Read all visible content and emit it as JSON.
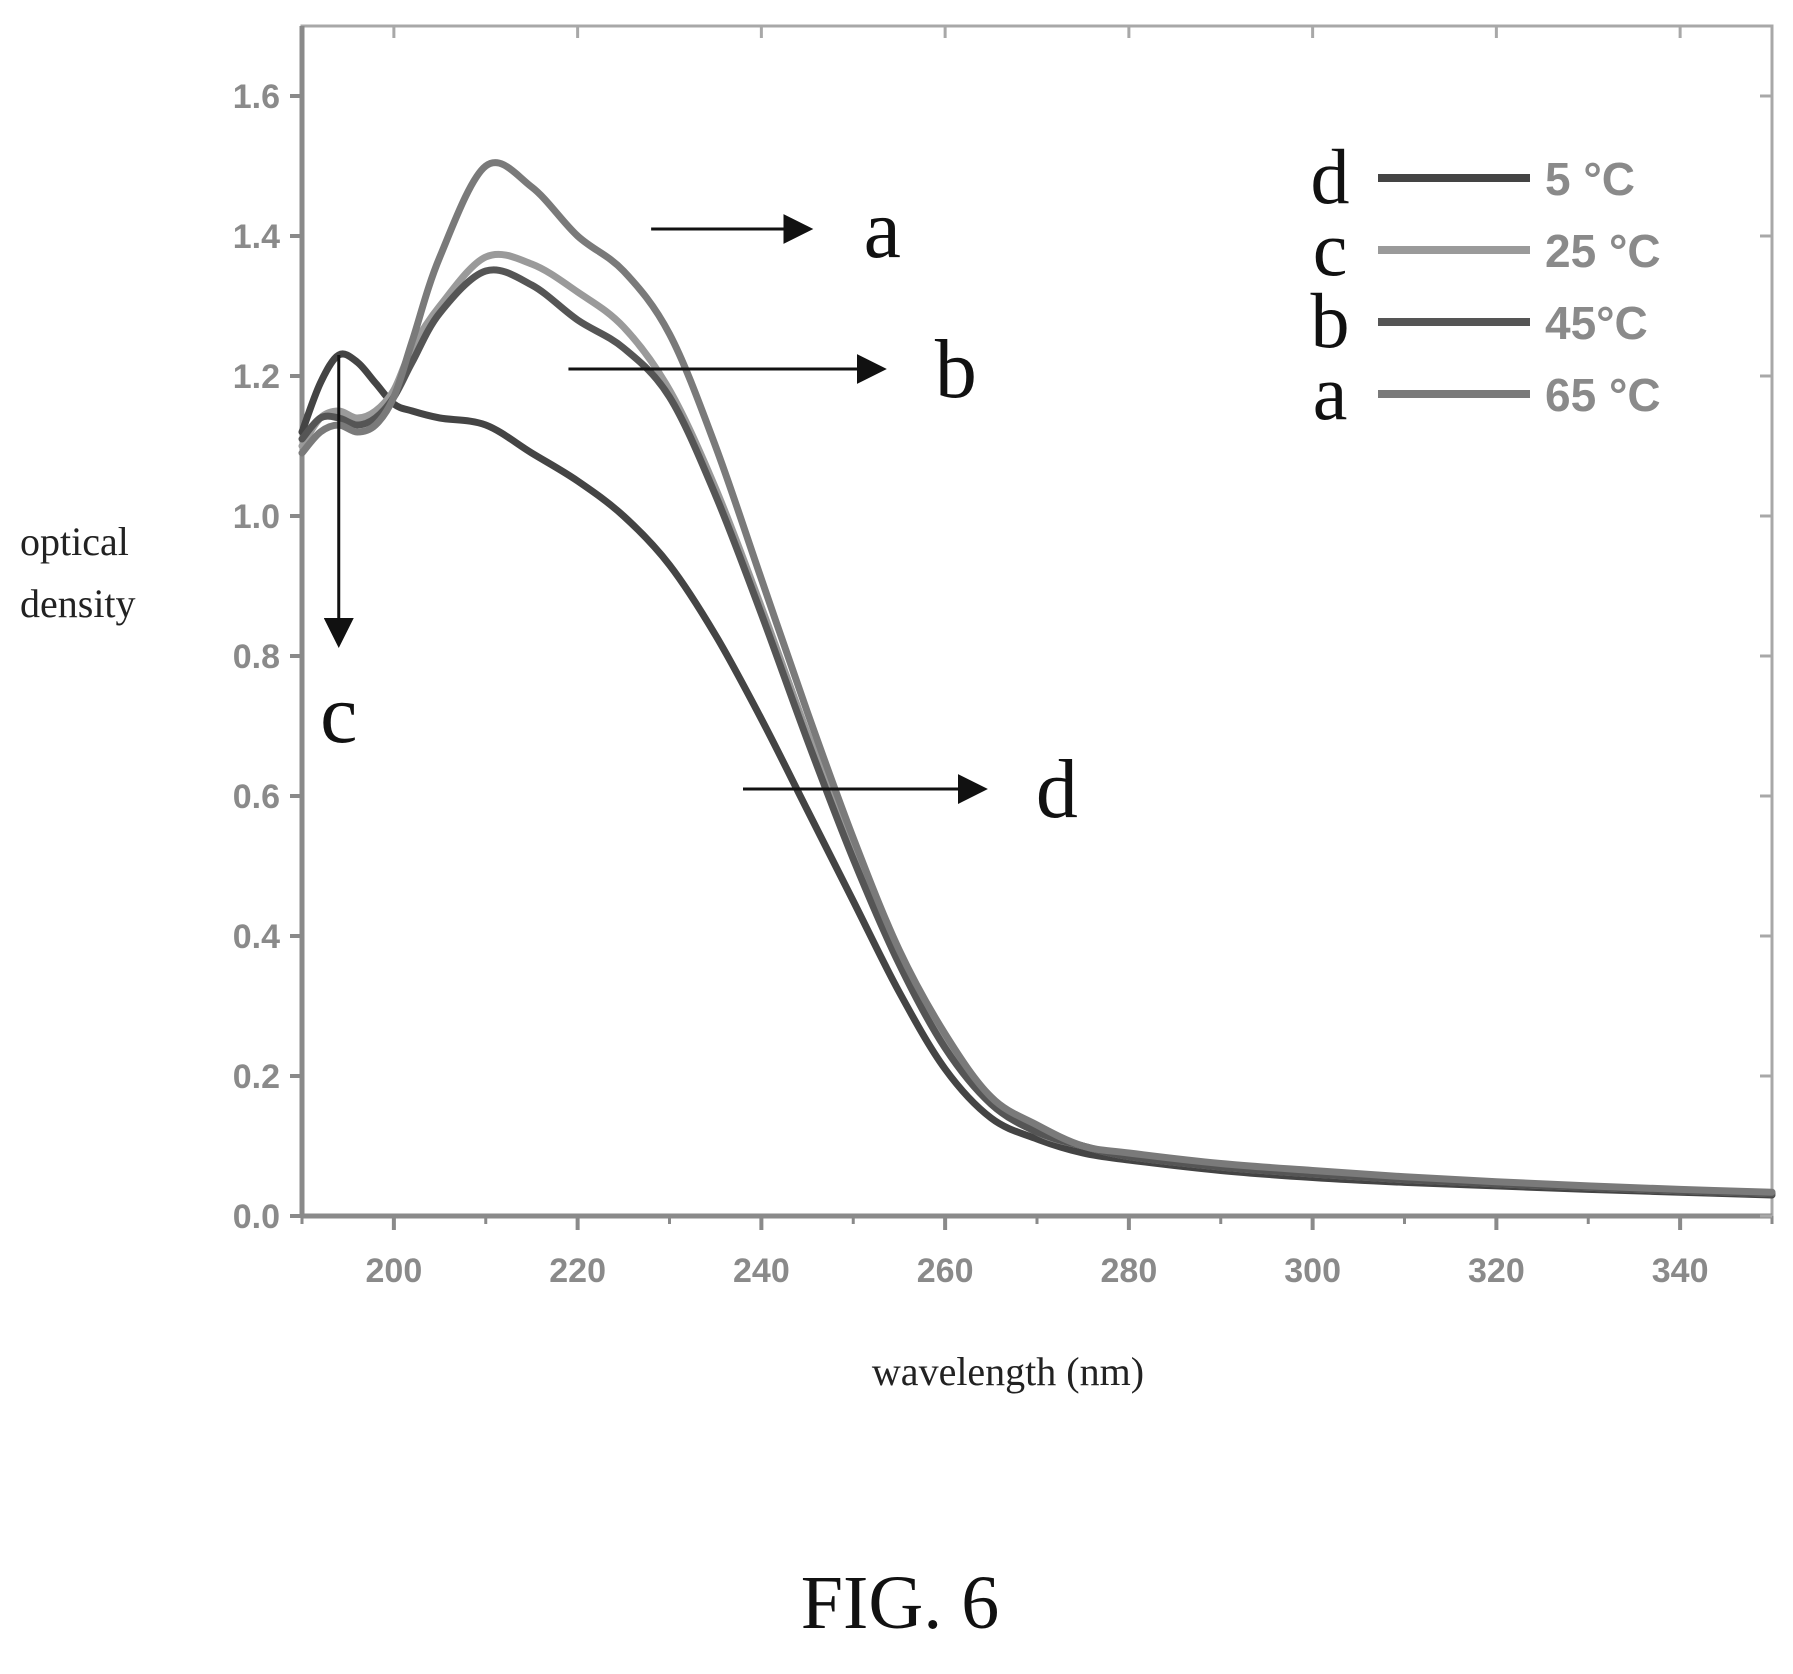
{
  "chart_data": {
    "type": "line",
    "title": "",
    "xlabel": "wavelength (nm)",
    "ylabel_lines": [
      "optical",
      "density"
    ],
    "xlim": [
      190,
      350
    ],
    "ylim": [
      0,
      1.7
    ],
    "x_ticks": [
      200,
      220,
      240,
      260,
      280,
      300,
      320,
      340
    ],
    "x_tick_labels": [
      "200",
      "220",
      "240",
      "260",
      "280",
      "300",
      "320",
      "340"
    ],
    "y_ticks": [
      0,
      0.2,
      0.4,
      0.6,
      0.8,
      1.0,
      1.2,
      1.4,
      1.6
    ],
    "y_tick_labels": [
      "0.0",
      "0.2",
      "0.4",
      "0.6",
      "0.8",
      "1.0",
      "1.2",
      "1.4",
      "1.6"
    ],
    "grid": false,
    "legend_position": "top-right",
    "series": [
      {
        "name": "5 °C",
        "letter": "d",
        "color": "#444444",
        "x": [
          190,
          192,
          194,
          196,
          198,
          200,
          202,
          205,
          210,
          215,
          220,
          225,
          230,
          235,
          240,
          245,
          250,
          255,
          260,
          265,
          270,
          275,
          280,
          290,
          300,
          310,
          320,
          330,
          340,
          350
        ],
        "y": [
          1.12,
          1.19,
          1.23,
          1.22,
          1.19,
          1.16,
          1.15,
          1.14,
          1.13,
          1.09,
          1.05,
          1.0,
          0.93,
          0.83,
          0.71,
          0.58,
          0.45,
          0.32,
          0.21,
          0.14,
          0.11,
          0.09,
          0.08,
          0.065,
          0.055,
          0.048,
          0.043,
          0.038,
          0.034,
          0.03
        ]
      },
      {
        "name": "25 °C",
        "letter": "c",
        "color": "#9a9a9a",
        "x": [
          190,
          192,
          194,
          196,
          198,
          200,
          202,
          205,
          210,
          215,
          220,
          225,
          230,
          235,
          240,
          245,
          250,
          255,
          260,
          265,
          270,
          275,
          280,
          290,
          300,
          310,
          320,
          330,
          340,
          350
        ],
        "y": [
          1.1,
          1.14,
          1.15,
          1.14,
          1.15,
          1.18,
          1.24,
          1.3,
          1.37,
          1.36,
          1.32,
          1.27,
          1.18,
          1.04,
          0.87,
          0.69,
          0.52,
          0.37,
          0.25,
          0.17,
          0.12,
          0.1,
          0.085,
          0.07,
          0.06,
          0.052,
          0.046,
          0.041,
          0.036,
          0.032
        ]
      },
      {
        "name": "45°C",
        "letter": "b",
        "color": "#555555",
        "x": [
          190,
          192,
          194,
          196,
          198,
          200,
          202,
          205,
          210,
          215,
          220,
          225,
          230,
          235,
          240,
          245,
          250,
          255,
          260,
          265,
          270,
          275,
          280,
          290,
          300,
          310,
          320,
          330,
          340,
          350
        ],
        "y": [
          1.11,
          1.14,
          1.14,
          1.13,
          1.14,
          1.17,
          1.22,
          1.29,
          1.35,
          1.33,
          1.28,
          1.24,
          1.17,
          1.03,
          0.86,
          0.68,
          0.51,
          0.36,
          0.24,
          0.16,
          0.12,
          0.1,
          0.085,
          0.07,
          0.06,
          0.052,
          0.046,
          0.041,
          0.036,
          0.032
        ]
      },
      {
        "name": "65 °C",
        "letter": "a",
        "color": "#7a7a7a",
        "x": [
          190,
          192,
          194,
          196,
          198,
          200,
          202,
          205,
          210,
          215,
          220,
          225,
          230,
          235,
          240,
          245,
          250,
          255,
          260,
          265,
          270,
          275,
          280,
          290,
          300,
          310,
          320,
          330,
          340,
          350
        ],
        "y": [
          1.09,
          1.12,
          1.13,
          1.12,
          1.13,
          1.17,
          1.25,
          1.37,
          1.5,
          1.47,
          1.4,
          1.35,
          1.26,
          1.1,
          0.91,
          0.72,
          0.54,
          0.38,
          0.26,
          0.17,
          0.13,
          0.1,
          0.09,
          0.075,
          0.065,
          0.056,
          0.049,
          0.043,
          0.038,
          0.034
        ]
      }
    ],
    "annotations": [
      {
        "label": "a",
        "from": [
          228,
          1.41
        ],
        "to": [
          245,
          1.41
        ]
      },
      {
        "label": "b",
        "from": [
          219,
          1.21
        ],
        "to": [
          253,
          1.21
        ]
      },
      {
        "label": "c",
        "from": [
          194,
          1.23
        ],
        "to": [
          194,
          0.82
        ]
      },
      {
        "label": "d",
        "from": [
          238,
          0.61
        ],
        "to": [
          264,
          0.61
        ]
      }
    ],
    "caption": "FIG. 6"
  }
}
